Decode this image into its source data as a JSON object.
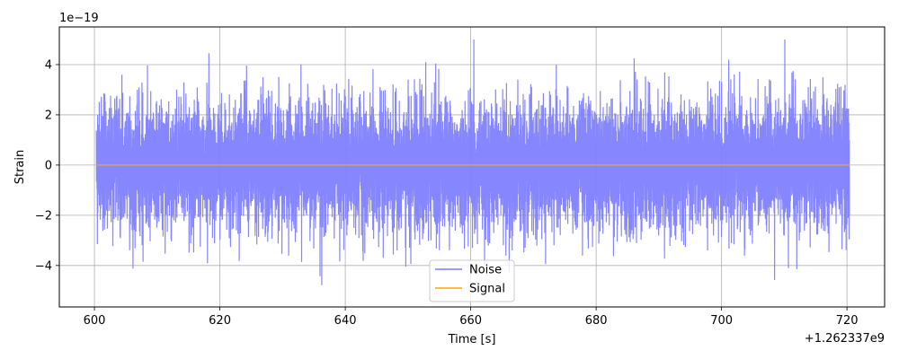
{
  "chart_data": {
    "type": "line",
    "title": "",
    "xlabel": "Time [s]",
    "ylabel": "Strain",
    "x_offset_label": "+1.262337e9",
    "y_scale_label": "1e−19",
    "xlim": [
      594.4,
      726.0
    ],
    "ylim": [
      -5.65,
      5.5
    ],
    "x_range": [
      600.3,
      720.4
    ],
    "xticks": [
      600,
      620,
      640,
      660,
      680,
      700,
      720
    ],
    "xtick_labels": [
      "600",
      "620",
      "640",
      "660",
      "680",
      "700",
      "720"
    ],
    "yticks": [
      -4,
      -2,
      0,
      2,
      4
    ],
    "ytick_labels": [
      "−4",
      "−2",
      "0",
      "2",
      "4"
    ],
    "grid": true,
    "legend_position": "lower center",
    "series": [
      {
        "name": "Noise",
        "color": "#7f7fff",
        "approx_amplitude": 2.5,
        "peak_min": -5.2,
        "peak_max": 5.0
      },
      {
        "name": "Signal",
        "color": "#ffa500",
        "constant_value": 0.0
      }
    ]
  }
}
